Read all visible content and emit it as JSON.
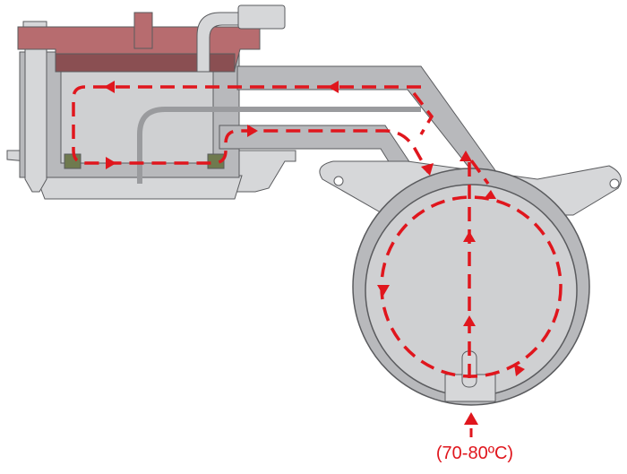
{
  "diagram": {
    "temperature_label": "(70-80ºC)",
    "colors": {
      "flow_arrow": "#e0161d",
      "lid": "#b76c6f",
      "lid_dark": "#8a4f52",
      "body": "#b8b9bc",
      "body_dark": "#9a9b9e",
      "body_light": "#d6d7d9",
      "cavity": "#cfd0d2",
      "outline": "#5a5b5e",
      "seal": "#6f7a4e"
    },
    "icons": [
      "flow-arrow-icon",
      "inlet-arrow-icon"
    ]
  }
}
